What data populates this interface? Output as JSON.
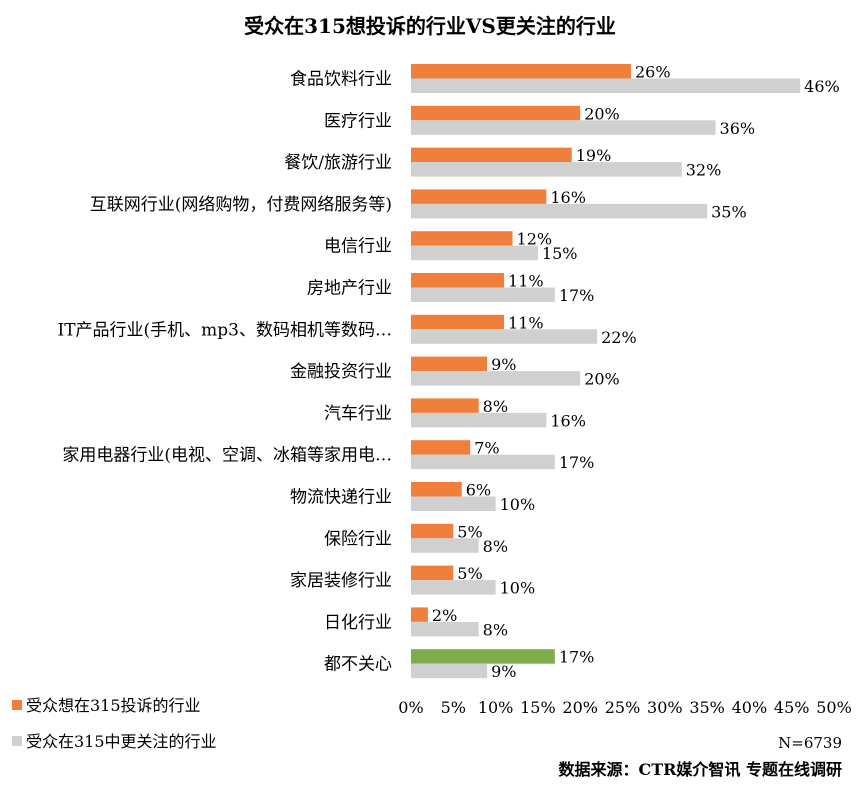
{
  "chart_data": {
    "type": "bar",
    "orientation": "horizontal",
    "title": "受众在315想投诉的行业VS更关注的行业",
    "categories": [
      "食品饮料行业",
      "医疗行业",
      "餐饮/旅游行业",
      "互联网行业(网络购物，付费网络服务等)",
      "电信行业",
      "房地产行业",
      "IT产品行业(手机、mp3、数码相机等数码…",
      "金融投资行业",
      "汽车行业",
      "家用电器行业(电视、空调、冰箱等家用电…",
      "物流快递行业",
      "保险行业",
      "家居装修行业",
      "日化行业",
      "都不关心"
    ],
    "series": [
      {
        "name": "受众想在315投诉的行业",
        "color": "#F07F3C",
        "values": [
          26,
          20,
          19,
          16,
          12,
          11,
          11,
          9,
          8,
          7,
          6,
          5,
          5,
          2,
          17
        ],
        "labels": [
          "26%",
          "20%",
          "19%",
          "16%",
          "12%",
          "11%",
          "11%",
          "9%",
          "8%",
          "7%",
          "6%",
          "5%",
          "5%",
          "2%",
          "17%"
        ]
      },
      {
        "name": "受众在315中更关注的行业",
        "color": "#D0D0D0",
        "values": [
          46,
          36,
          32,
          35,
          15,
          17,
          22,
          20,
          16,
          17,
          10,
          8,
          10,
          8,
          9
        ],
        "labels": [
          "46%",
          "36%",
          "32%",
          "35%",
          "15%",
          "17%",
          "22%",
          "20%",
          "16%",
          "17%",
          "10%",
          "8%",
          "10%",
          "8%",
          "9%"
        ]
      }
    ],
    "highlight": {
      "category_index": 14,
      "series_index": 0,
      "color": "#7FAD4C"
    },
    "xlim": [
      0,
      50
    ],
    "x_ticks": [
      "0%",
      "5%",
      "10%",
      "15%",
      "20%",
      "25%",
      "30%",
      "35%",
      "40%",
      "45%",
      "50%"
    ],
    "legend_position": "bottom-left",
    "grid": false
  },
  "note": "N=6739",
  "source": "数据来源：CTR媒介智讯 专题在线调研"
}
